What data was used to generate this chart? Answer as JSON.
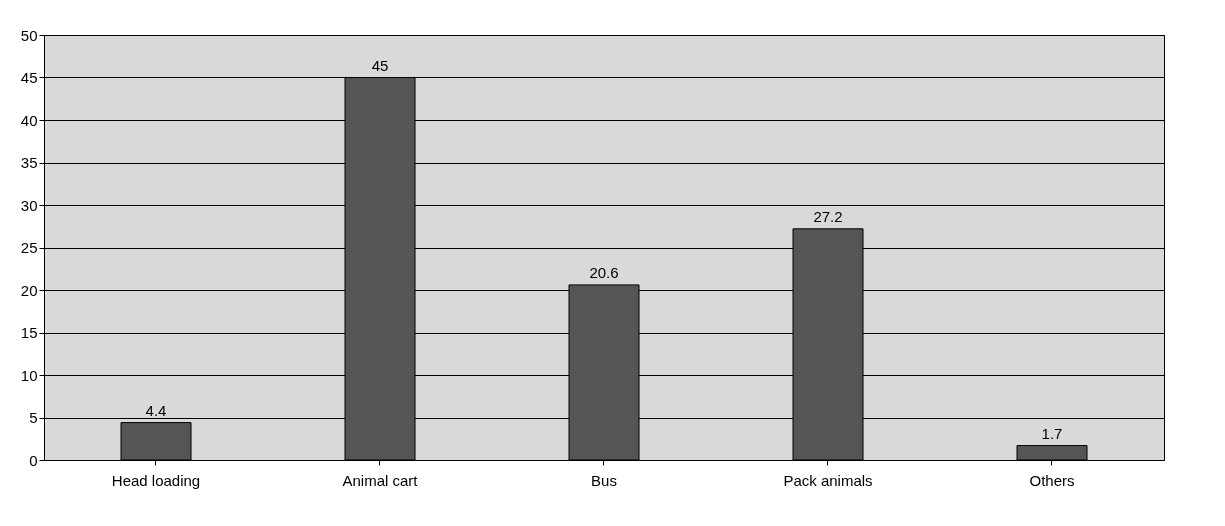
{
  "chart_data": {
    "type": "bar",
    "categories": [
      "Head loading",
      "Animal cart",
      "Bus",
      "Pack animals",
      "Others"
    ],
    "values": [
      4.4,
      45,
      20.6,
      27.2,
      1.7
    ],
    "color": "#555555",
    "ylim": [
      0,
      50
    ],
    "yticks": [
      0,
      5,
      10,
      15,
      20,
      25,
      30,
      35,
      40,
      45,
      50
    ],
    "grid": "y",
    "data_labels": true
  }
}
